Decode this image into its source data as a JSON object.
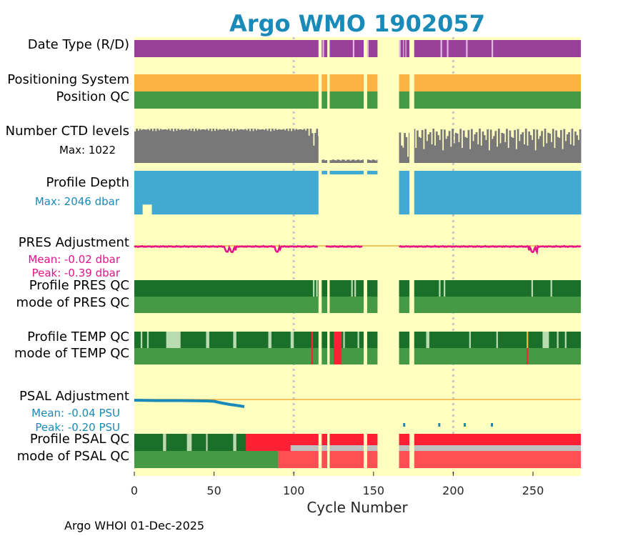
{
  "chart_data": {
    "type": "status-timeline",
    "title": "Argo WMO 1902057",
    "xlabel": "Cycle Number",
    "xlim": [
      0,
      280
    ],
    "xticks": [
      0,
      50,
      100,
      150,
      200,
      250
    ],
    "footer": "Argo WHOI 01-Dec-2025",
    "colors": {
      "background": "#ffffc0",
      "title": "#1a8ab8",
      "date_type": "#9a3f9a",
      "date_type_gap": "#e0b8e0",
      "positioning": "#fbb443",
      "qc_good": "#469a46",
      "qc_dark": "#1a7028",
      "qc_light": "#b8dcb0",
      "qc_bad": "#ff2035",
      "qc_bad_light": "#ff4f55",
      "qc_grey": "#c0c0c0",
      "ctd": "#787878",
      "depth": "#42aad2",
      "pres_adj": "#e6128c",
      "psal_adj": "#1a8ab8",
      "zero_line": "#f0b040",
      "vline": "#c8c8c8"
    },
    "missing_cycles": [
      [
        115.5,
        117.5
      ],
      [
        121,
        122.5
      ],
      [
        143.8,
        146
      ],
      [
        152.5,
        166
      ],
      [
        172.5,
        175.5
      ]
    ],
    "reference_cycles": [
      100,
      200
    ],
    "rows": [
      {
        "id": "date-type",
        "label": "Date Type (R/D)",
        "base": "date_type",
        "gaps": [
          [
            118,
            119
          ],
          [
            137,
            138
          ],
          [
            146,
            147
          ],
          [
            166,
            167
          ],
          [
            168.5,
            169
          ],
          [
            170,
            170.6
          ],
          [
            192,
            193
          ],
          [
            196,
            197
          ],
          [
            208,
            209
          ],
          [
            224,
            225
          ]
        ]
      },
      {
        "id": "positioning-system",
        "label": "Positioning System",
        "base": "positioning"
      },
      {
        "id": "position-qc",
        "label": "Position QC",
        "base": "qc_good"
      },
      {
        "id": "ctd-levels",
        "label": "Number CTD levels",
        "sub": "Max: 1022"
      },
      {
        "id": "profile-depth",
        "label": "Profile Depth",
        "sub": "Max: 2046 dbar"
      },
      {
        "id": "pres-adjustment",
        "label": "PRES Adjustment",
        "sub1": "Mean: -0.02 dbar",
        "sub2": "Peak: -0.39 dbar",
        "mean": -0.02,
        "peak": -0.39
      },
      {
        "id": "profile-pres-qc",
        "label": "Profile PRES QC",
        "base": "qc_dark",
        "light": [
          [
            112,
            113
          ],
          [
            114,
            115
          ],
          [
            136,
            137
          ],
          [
            138,
            139
          ],
          [
            191,
            192
          ],
          [
            194,
            195
          ],
          [
            249,
            250
          ],
          [
            261,
            262
          ]
        ]
      },
      {
        "id": "mode-pres-qc",
        "label": "mode of PRES QC",
        "base": "qc_good"
      },
      {
        "id": "profile-temp-qc",
        "label": "Profile TEMP QC",
        "base": "qc_dark",
        "light": [
          [
            4,
            5
          ],
          [
            8,
            9
          ],
          [
            20,
            29
          ],
          [
            45,
            47
          ],
          [
            62,
            64
          ],
          [
            84,
            86
          ],
          [
            98,
            100
          ],
          [
            131,
            132
          ],
          [
            140,
            141
          ],
          [
            183,
            185
          ],
          [
            210,
            211
          ],
          [
            227,
            228
          ],
          [
            256,
            260
          ],
          [
            265,
            266
          ],
          [
            270,
            271
          ]
        ],
        "bad": [
          [
            111,
            112
          ],
          [
            125,
            130
          ]
        ],
        "orange": [
          [
            246,
            247
          ]
        ]
      },
      {
        "id": "mode-temp-qc",
        "label": "mode of TEMP QC",
        "base": "qc_good",
        "bad": [
          [
            111,
            112
          ],
          [
            125,
            130
          ],
          [
            246,
            247
          ]
        ]
      },
      {
        "id": "psal-adjustment",
        "label": "PSAL Adjustment",
        "sub1": "Mean: -0.04 PSU",
        "sub2": "Peak: -0.20 PSU",
        "mean": -0.04,
        "peak": -0.2
      },
      {
        "id": "profile-psal-qc",
        "label": "Profile PSAL QC",
        "base": "qc_bad",
        "segments": [
          [
            0,
            18,
            "qc_dark"
          ],
          [
            18,
            20,
            "qc_light"
          ],
          [
            20,
            33,
            "qc_dark"
          ],
          [
            33,
            36,
            "qc_light"
          ],
          [
            36,
            45,
            "qc_dark"
          ],
          [
            45,
            46,
            "qc_light"
          ],
          [
            46,
            62,
            "qc_dark"
          ],
          [
            62,
            64,
            "qc_light"
          ],
          [
            64,
            70,
            "qc_dark"
          ]
        ],
        "grey": [
          [
            98,
            280
          ]
        ]
      },
      {
        "id": "mode-psal-qc",
        "label": "mode of PSAL QC",
        "base": "qc_bad_light",
        "segments": [
          [
            0,
            90,
            "qc_good"
          ]
        ]
      }
    ],
    "ctd_levels": {
      "max": 1022
    },
    "profile_depth": {
      "max_dbar": 2046
    },
    "pres_adjustment": {
      "mean_dbar": -0.02,
      "peak_dbar": -0.39
    },
    "psal_adjustment": {
      "mean_psu": -0.04,
      "peak_psu": -0.2,
      "line_x": [
        0,
        15,
        30,
        45,
        50,
        55,
        60,
        65,
        69
      ],
      "line_y": [
        -0.02,
        -0.03,
        -0.03,
        -0.04,
        -0.05,
        -0.1,
        -0.14,
        -0.17,
        -0.2
      ],
      "isolated": [
        [
          169,
          -0.18
        ],
        [
          191,
          -0.18
        ],
        [
          207,
          -0.18
        ],
        [
          224,
          -0.18
        ]
      ]
    }
  }
}
